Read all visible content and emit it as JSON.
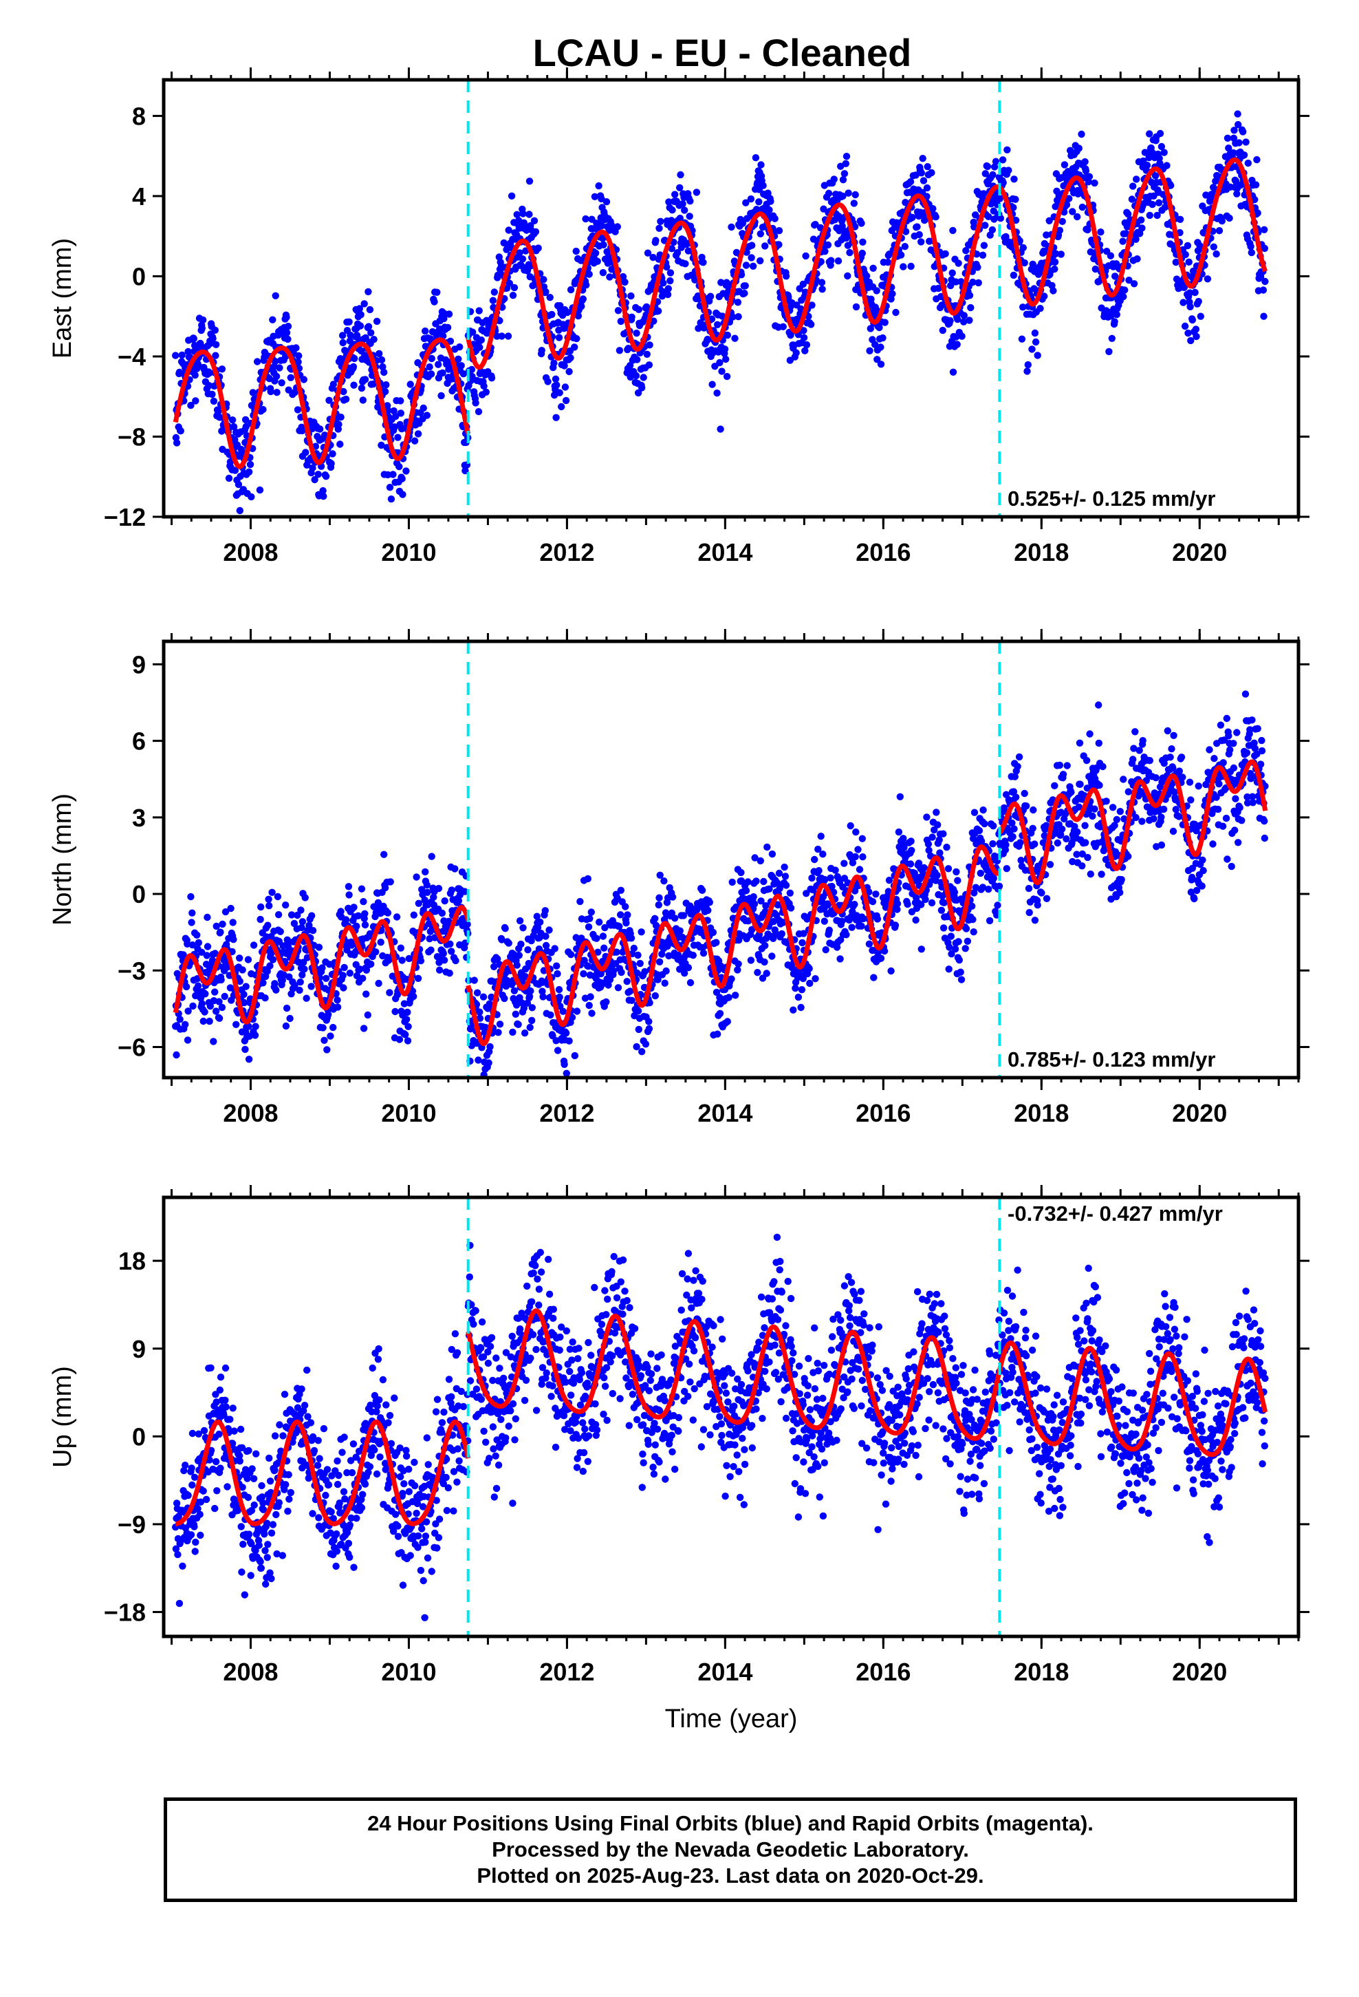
{
  "title": "LCAU  - EU - Cleaned",
  "caption": {
    "line1": "24 Hour Positions Using Final Orbits (blue) and Rapid Orbits (magenta).",
    "line2": "Processed by the Nevada Geodetic Laboratory.",
    "line3": "Plotted on 2025-Aug-23. Last data on 2020-Oct-29."
  },
  "colors": {
    "data": "#0000ff",
    "fit": "#ff0000",
    "breaks": "#00e5ee"
  },
  "chart_data": [
    {
      "type": "scatter",
      "name": "east",
      "ylabel": "East (mm)",
      "xlabel": "",
      "xlim": [
        2006.9,
        2021.25
      ],
      "ylim": [
        -12,
        9.8
      ],
      "yticks": [
        -12,
        -8,
        -4,
        0,
        4,
        8
      ],
      "xticks": [
        2008,
        2010,
        2012,
        2014,
        2016,
        2018,
        2020
      ],
      "rate_text": "0.525+/- 0.125 mm/yr",
      "rate_pos": "bottom-right",
      "data_span": [
        2007.05,
        2020.83
      ],
      "equipment_breaks": [
        2010.75,
        2017.47
      ],
      "fit_segments": [
        {
          "x0": 2007.05,
          "x1": 2010.75,
          "offset": -6.0,
          "rate": 0.2,
          "amp1": 2.9,
          "phase1": 0.37,
          "amp2": 0.4,
          "phase2": 0.1
        },
        {
          "x0": 2010.75,
          "x1": 2020.83,
          "offset": 0.9,
          "rate": 0.45,
          "amp1": 3.0,
          "phase1": 0.41,
          "amp2": 0.3,
          "phase2": 0.1
        }
      ],
      "scatter_sigma": 1.2,
      "grid": false
    },
    {
      "type": "scatter",
      "name": "north",
      "ylabel": "North (mm)",
      "xlabel": "",
      "xlim": [
        2006.9,
        2021.25
      ],
      "ylim": [
        -7.2,
        9.9
      ],
      "yticks": [
        -6,
        -3,
        0,
        3,
        6,
        9
      ],
      "xticks": [
        2008,
        2010,
        2012,
        2014,
        2016,
        2018,
        2020
      ],
      "rate_text": "0.785+/- 0.123 mm/yr",
      "rate_pos": "bottom-right",
      "data_span": [
        2007.05,
        2020.83
      ],
      "equipment_breaks": [
        2010.75,
        2017.47
      ],
      "fit_segments": [
        {
          "x0": 2007.05,
          "x1": 2010.75,
          "offset": -2.6,
          "rate": 0.55,
          "amp1": 0.9,
          "phase1": 0.45,
          "amp2": 1.0,
          "phase2": 0.2
        },
        {
          "x0": 2010.75,
          "x1": 2017.47,
          "offset": -1.6,
          "rate": 0.75,
          "amp1": 0.9,
          "phase1": 0.45,
          "amp2": 1.0,
          "phase2": 0.2
        },
        {
          "x0": 2017.47,
          "x1": 2020.83,
          "offset": 3.2,
          "rate": 0.55,
          "amp1": 1.1,
          "phase1": 0.45,
          "amp2": 1.0,
          "phase2": 0.2
        }
      ],
      "scatter_sigma": 1.0,
      "grid": false
    },
    {
      "type": "scatter",
      "name": "up",
      "ylabel": "Up (mm)",
      "xlabel": "Time (year)",
      "xlim": [
        2006.9,
        2021.25
      ],
      "ylim": [
        -20.5,
        24.5
      ],
      "yticks": [
        -18,
        -9,
        0,
        9,
        18
      ],
      "xticks": [
        2008,
        2010,
        2012,
        2014,
        2016,
        2018,
        2020
      ],
      "rate_text": "-0.732+/- 0.427 mm/yr",
      "rate_pos": "top-right",
      "data_span": [
        2007.05,
        2020.83
      ],
      "equipment_breaks": [
        2010.75,
        2017.47
      ],
      "fit_segments": [
        {
          "x0": 2007.05,
          "x1": 2010.75,
          "offset": -4.5,
          "rate": 0.0,
          "amp1": 5.2,
          "phase1": 0.58,
          "amp2": 0.8,
          "phase2": 0.1
        },
        {
          "x0": 2010.75,
          "x1": 2020.83,
          "offset": 4.8,
          "rate": -0.55,
          "amp1": 5.0,
          "phase1": 0.62,
          "amp2": 0.8,
          "phase2": 0.1
        }
      ],
      "scatter_sigma": 3.4,
      "grid": false
    }
  ]
}
